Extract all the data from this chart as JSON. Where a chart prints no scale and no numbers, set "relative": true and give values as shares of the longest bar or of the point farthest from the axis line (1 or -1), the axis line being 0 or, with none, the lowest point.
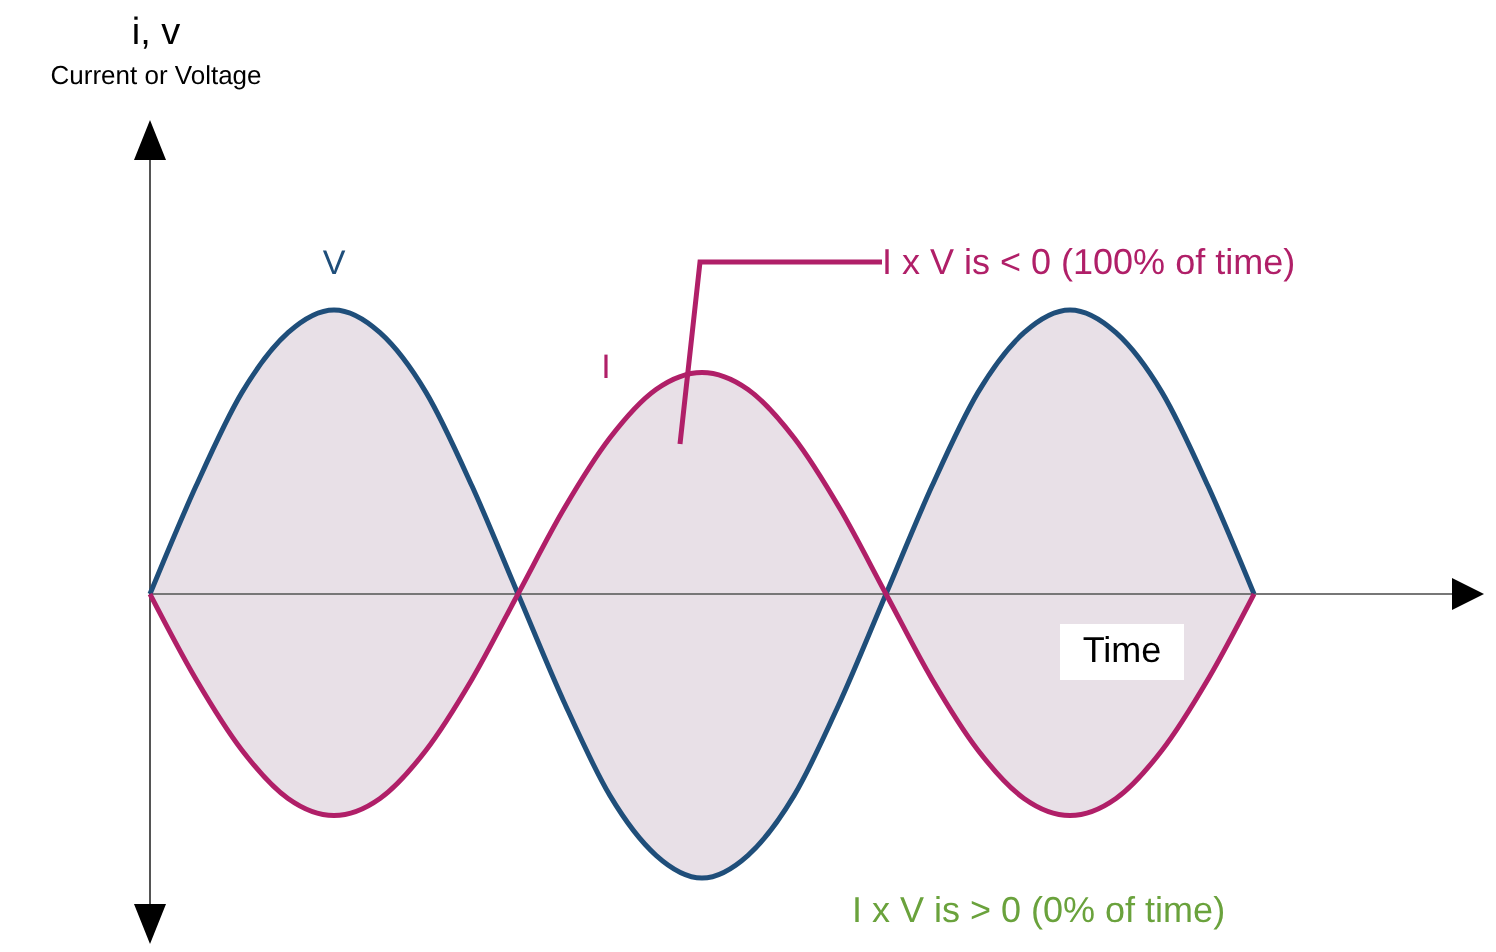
{
  "chart_data": {
    "type": "line",
    "relative": true,
    "xlabel": "Time",
    "annotations": [
      "i, v",
      "Current or Voltage",
      "I x V is < 0 (100% of time)",
      "I x V is > 0 (0% of time)"
    ],
    "categories": [
      null,
      null,
      null,
      null,
      null,
      null,
      null,
      null,
      null,
      null,
      null,
      null,
      null,
      null,
      null,
      null,
      null,
      null,
      null,
      null,
      null,
      null,
      null,
      null,
      null
    ],
    "series": [
      {
        "name": "V",
        "color": "#1f4e7a",
        "values": [
          0,
          0.38,
          0.71,
          0.92,
          1,
          0.92,
          0.71,
          0.38,
          0,
          -0.38,
          -0.71,
          -0.92,
          -1,
          -0.92,
          -0.71,
          -0.38,
          0,
          0.38,
          0.71,
          0.92,
          1,
          0.92,
          0.71,
          0.38,
          0
        ]
      },
      {
        "name": "I",
        "color": "#b01f68",
        "values": [
          0,
          -0.3,
          -0.55,
          -0.72,
          -0.78,
          -0.72,
          -0.55,
          -0.3,
          0,
          0.3,
          0.55,
          0.72,
          0.78,
          0.72,
          0.55,
          0.3,
          0,
          -0.3,
          -0.55,
          -0.72,
          -0.78,
          -0.72,
          -0.55,
          -0.3,
          0
        ]
      }
    ]
  }
}
